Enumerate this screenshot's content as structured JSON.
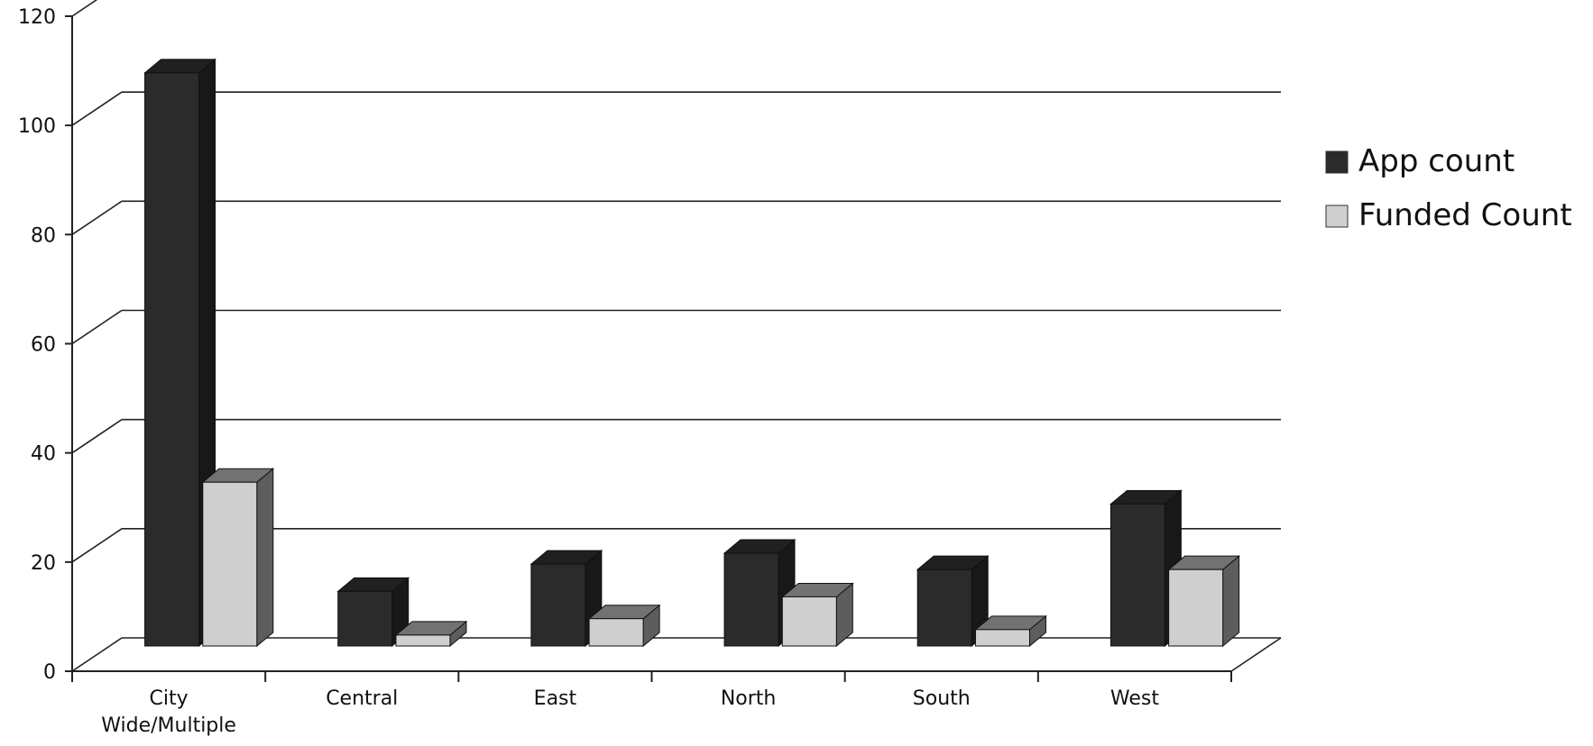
{
  "chart_data": {
    "type": "bar",
    "categories": [
      "City Wide/Multiple",
      "Central",
      "East",
      "North",
      "South",
      "West"
    ],
    "category_lines": [
      [
        "City",
        "Wide/Multiple"
      ],
      [
        "Central"
      ],
      [
        "East"
      ],
      [
        "North"
      ],
      [
        "South"
      ],
      [
        "West"
      ]
    ],
    "series": [
      {
        "name": "App count",
        "values": [
          105,
          10,
          15,
          17,
          14,
          26
        ],
        "color": "#2b2b2b"
      },
      {
        "name": "Funded Count",
        "values": [
          30,
          2,
          5,
          9,
          3,
          14
        ],
        "color": "#cfcfcf"
      }
    ],
    "ylim": [
      0,
      120
    ],
    "yticks": [
      0,
      20,
      40,
      60,
      80,
      100,
      120
    ],
    "grid": true,
    "legend_position": "right",
    "style": "3d"
  }
}
